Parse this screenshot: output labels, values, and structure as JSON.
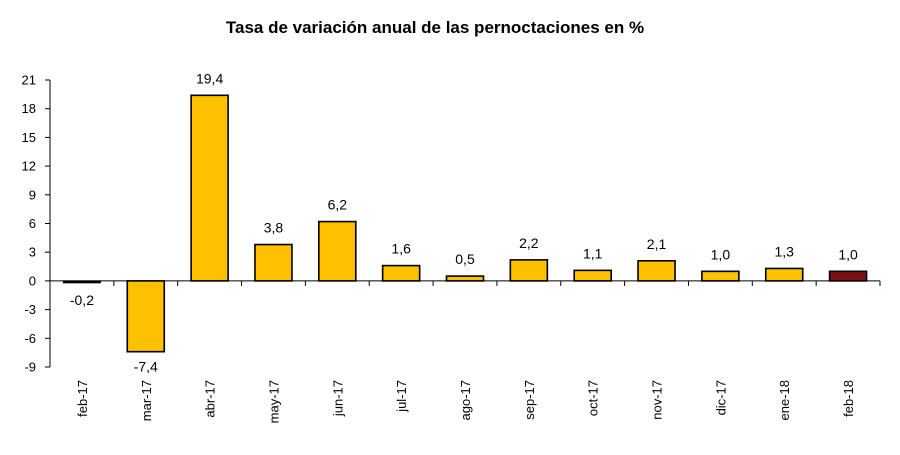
{
  "chart_data": {
    "type": "bar",
    "title": "Tasa de variación anual de las pernoctaciones en %",
    "xlabel": "",
    "ylabel": "",
    "ylim": [
      -9,
      21
    ],
    "yticks": [
      21,
      18,
      15,
      12,
      9,
      6,
      3,
      0,
      -3,
      -6,
      -9
    ],
    "ytick_labels": [
      "21",
      "18",
      "15",
      "12",
      "9",
      "6",
      "3",
      "0",
      "-3",
      "-6",
      "-9"
    ],
    "grid": false,
    "legend": "none",
    "categories": [
      "feb-17",
      "mar-17",
      "abr-17",
      "may-17",
      "jun-17",
      "jul-17",
      "ago-17",
      "sep-17",
      "oct-17",
      "nov-17",
      "dic-17",
      "ene-18",
      "feb-18"
    ],
    "values": [
      -0.2,
      -7.4,
      19.4,
      3.8,
      6.2,
      1.6,
      0.5,
      2.2,
      1.1,
      2.1,
      1.0,
      1.3,
      1.0
    ],
    "data_labels": [
      "-0,2",
      "-7,4",
      "19,4",
      "3,8",
      "6,2",
      "1,6",
      "0,5",
      "2,2",
      "1,1",
      "2,1",
      "1,0",
      "1,3",
      "1,0"
    ],
    "colors": {
      "default_bar": "#FFC000",
      "highlight_bar": "#7B1016",
      "bar_outline": "#000000",
      "axis": "#000000"
    },
    "highlight_index": 12
  }
}
